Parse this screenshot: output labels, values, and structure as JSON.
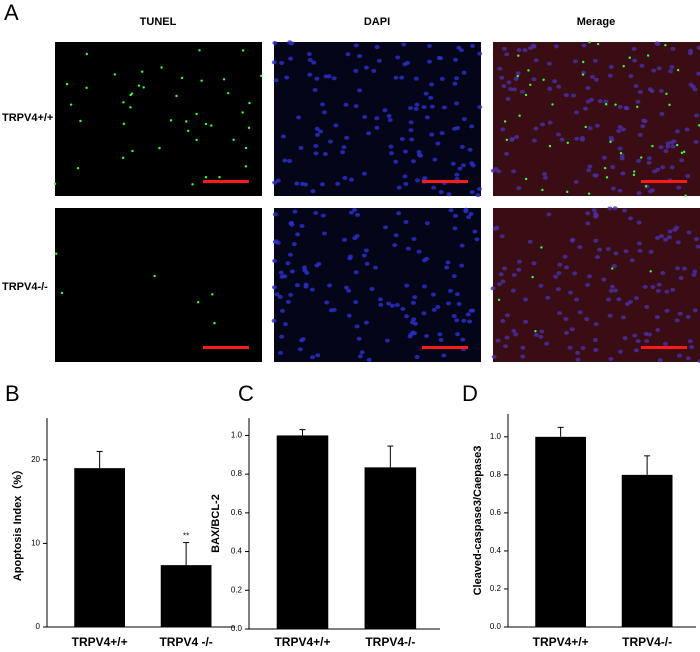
{
  "panel_labels": [
    "A",
    "B",
    "C",
    "D"
  ],
  "image_panel": {
    "columns": [
      "TUNEL",
      "DAPI",
      "Merage"
    ],
    "rows": [
      "TRPV4+/+",
      "TRPV4-/-"
    ]
  },
  "chart_data": [
    {
      "type": "bar",
      "ylabel": "Apoptosis Index（%）",
      "categories": [
        "TRPV4+/+",
        "TRPV4 -/-"
      ],
      "values": [
        19.0,
        7.4
      ],
      "errors": [
        2.0,
        2.7
      ],
      "value_annotations": [
        null,
        "**"
      ],
      "color": "#000000",
      "ylim": [
        0,
        25
      ],
      "yticks": [
        0,
        10,
        20
      ]
    },
    {
      "type": "bar",
      "ylabel": "BAX/BCL-2",
      "categories": [
        "TRPV4+/+",
        "TRPV4-/-"
      ],
      "values": [
        1.0,
        0.835
      ],
      "errors": [
        0.03,
        0.11
      ],
      "color": "#000000",
      "ylim": [
        0,
        1.09
      ],
      "yticks": [
        {
          "value": 0,
          "label": "0.0"
        },
        0.2,
        0.4,
        0.6,
        0.8,
        {
          "value": 1,
          "label": "1.0"
        }
      ]
    },
    {
      "type": "bar",
      "ylabel": "Cleaved-caspase3/Caepase3",
      "categories": [
        "TRPV4+/+",
        "TRPV4-/-"
      ],
      "values": [
        1.0,
        0.8
      ],
      "errors": [
        0.05,
        0.1
      ],
      "color": "#000000",
      "ylim": [
        0,
        1.12
      ],
      "yticks": [
        {
          "value": 0,
          "label": "0.0"
        },
        0.2,
        0.4,
        0.6,
        0.8,
        {
          "value": 1,
          "label": "1.0"
        }
      ]
    }
  ]
}
